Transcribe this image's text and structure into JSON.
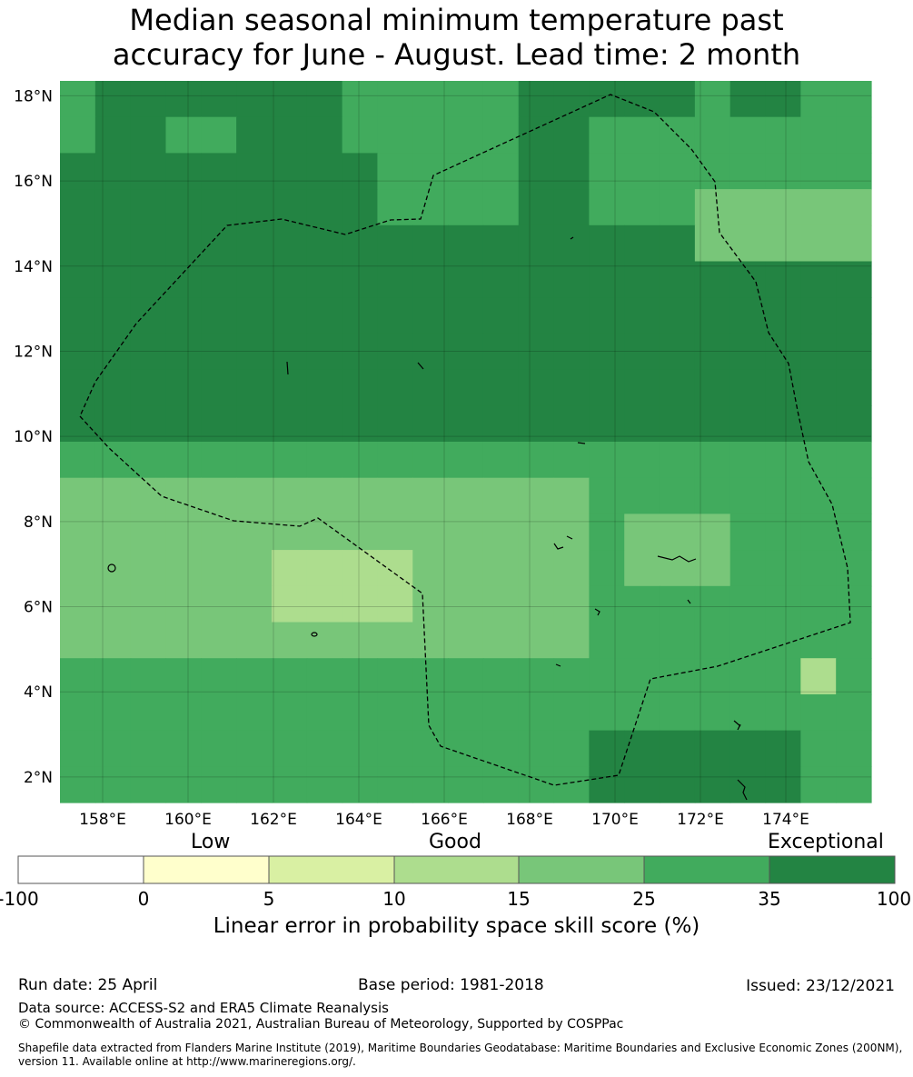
{
  "title_line1": "Median seasonal minimum temperature past",
  "title_line2": "accuracy for June - August. Lead time: 2 month",
  "map": {
    "lat_labels": [
      "18°N",
      "16°N",
      "14°N",
      "12°N",
      "10°N",
      "8°N",
      "6°N",
      "4°N",
      "2°N"
    ],
    "lat_values": [
      18,
      16,
      14,
      12,
      10,
      8,
      6,
      4,
      2
    ],
    "lon_labels": [
      "158°E",
      "160°E",
      "162°E",
      "164°E",
      "166°E",
      "168°E",
      "170°E",
      "172°E",
      "174°E"
    ],
    "lon_values": [
      158,
      160,
      162,
      164,
      166,
      168,
      170,
      172,
      174
    ],
    "lon_range": [
      157,
      176
    ],
    "lat_range": [
      1.4,
      18.35
    ],
    "grid_lines": true
  },
  "legend": {
    "category_labels": [
      "Low",
      "Good",
      "Exceptional"
    ],
    "tick_labels": [
      "-100",
      "0",
      "5",
      "10",
      "15",
      "25",
      "35",
      "100"
    ],
    "colors": [
      "#ffffff",
      "#ffffcc",
      "#d9f0a3",
      "#addd8e",
      "#78c679",
      "#41ab5d",
      "#238443"
    ],
    "axis_label": "Linear error in probability space skill score (%)"
  },
  "footer": {
    "run_date": "Run date: 25 April",
    "base_period": "Base period: 1981-2018",
    "issued": "Issued: 23/12/2021",
    "data_source": "Data source: ACCESS-S2 and ERA5 Climate Reanalysis",
    "copyright": "© Commonwealth of Australia 2021, Australian Bureau of Meteorology, Supported by COSPPac",
    "shapefile": "Shapefile data extracted from Flanders Marine Institute (2019), Maritime Boundaries Geodatabase: Maritime Boundaries and Exclusive Economic Zones (200NM), version 11. Available online at http://www.marineregions.org/."
  }
}
